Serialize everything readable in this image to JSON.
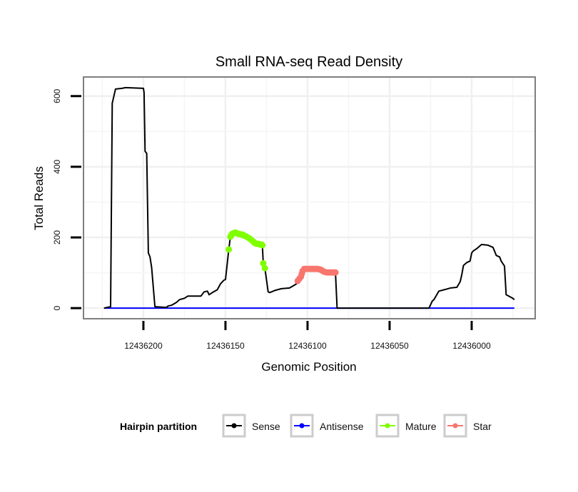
{
  "chart_data": {
    "type": "line",
    "title": "Small RNA-seq Read Density",
    "xlabel": "Genomic Position",
    "ylabel": "Total Reads",
    "xlim": [
      12436236.5,
      12435961.3
    ],
    "x_reversed": true,
    "ylim": [
      -30,
      654
    ],
    "grid": true,
    "x_ticks": [
      12436200,
      12436150,
      12436100,
      12436050,
      12436000
    ],
    "x_tick_labels": [
      "12436200",
      "12436150",
      "12436100",
      "12436050",
      "12436000"
    ],
    "y_ticks": [
      0,
      200,
      400,
      600
    ],
    "y_tick_labels": [
      "0",
      "200",
      "400",
      "600"
    ],
    "legend": {
      "title": "Hairpin partition",
      "placement": "bottom",
      "entries": [
        "Sense",
        "Antisense",
        "Mature",
        "Star"
      ]
    },
    "series": [
      {
        "name": "Sense",
        "color": "#000000",
        "style": "line",
        "x": [
          12436224,
          12436220,
          12436219,
          12436217,
          12436213,
          12436211,
          12436200,
          12436199.6,
          12436199,
          12436198,
          12436197,
          12436196,
          12436195,
          12436193,
          12436186,
          12436185,
          12436183,
          12436180,
          12436178,
          12436175,
          12436173,
          12436165,
          12436163,
          12436161,
          12436160,
          12436158,
          12436155,
          12436153,
          12436151,
          12436150,
          12436148,
          12436147,
          12436146,
          12436144,
          12436142,
          12436140,
          12436139,
          12436137,
          12436135,
          12436133,
          12436132,
          12436130,
          12436128,
          12436127.5,
          12436127,
          12436126,
          12436124,
          12436123,
          12436120,
          12436116,
          12436111,
          12436108,
          12436106,
          12436105.5,
          12436104,
          12436103,
          12436102,
          12436098,
          12436094,
          12436092,
          12436090,
          12436087,
          12436083,
          12436082,
          12436026,
          12436024,
          12436023,
          12436021,
          12436020,
          12436016,
          12436013,
          12436009,
          12436007,
          12436006,
          12436005,
          12436003,
          12436001,
          12436000,
          12435999,
          12435997,
          12435994,
          12435990,
          12435987,
          12435985,
          12435983,
          12435982,
          12435980,
          12435979,
          12435975,
          12435974
        ],
        "y": [
          0,
          4,
          580,
          620,
          622,
          624,
          622,
          610,
          444,
          438,
          156,
          145,
          115,
          4,
          2,
          6,
          8,
          16,
          24,
          28,
          34,
          34,
          46,
          48,
          38,
          44,
          52,
          69,
          79,
          81,
          166,
          202,
          210,
          214,
          210,
          208,
          206,
          202,
          196,
          188,
          184,
          182,
          180,
          178,
          127,
          113,
          46,
          44,
          50,
          55,
          57,
          65,
          71,
          77,
          89,
          105,
          111,
          111,
          111,
          109,
          103,
          101,
          101,
          0,
          0,
          20,
          24,
          40,
          48,
          53,
          57,
          59,
          75,
          95,
          121,
          129,
          133,
          156,
          162,
          168,
          180,
          178,
          172,
          149,
          145,
          133,
          119,
          38,
          28,
          24
        ]
      },
      {
        "name": "Antisense",
        "color": "#0000ff",
        "style": "line",
        "x": [
          12436224,
          12435974
        ],
        "y": [
          0,
          0
        ]
      },
      {
        "name": "Mature",
        "color": "#7fff00",
        "style": "points",
        "x": [
          12436148,
          12436147,
          12436146.5,
          12436146,
          12436145,
          12436144,
          12436143,
          12436142,
          12436141,
          12436140,
          12436139.5,
          12436139,
          12436138,
          12436137,
          12436136,
          12436135,
          12436134,
          12436133,
          12436132.5,
          12436132,
          12436131,
          12436130,
          12436129,
          12436128,
          12436127.5,
          12436127,
          12436126
        ],
        "y": [
          166,
          202,
          206,
          210,
          212,
          214,
          212,
          210,
          209,
          208,
          208,
          206,
          204,
          202,
          199,
          196,
          192,
          188,
          186,
          184,
          182,
          182,
          180,
          180,
          178,
          127,
          113
        ]
      },
      {
        "name": "Star",
        "color": "#f8766d",
        "style": "points",
        "x": [
          12436106,
          12436105,
          12436104,
          12436103.5,
          12436103,
          12436102,
          12436101,
          12436100,
          12436099,
          12436098,
          12436097,
          12436096,
          12436095,
          12436094,
          12436093,
          12436092,
          12436091,
          12436090,
          12436089,
          12436088,
          12436087,
          12436086,
          12436085,
          12436084,
          12436083
        ],
        "y": [
          77,
          83,
          89,
          97,
          105,
          111,
          111,
          111,
          111,
          111,
          111,
          111,
          111,
          111,
          110,
          109,
          106,
          103,
          102,
          101,
          101,
          101,
          101,
          101,
          101
        ]
      }
    ]
  }
}
